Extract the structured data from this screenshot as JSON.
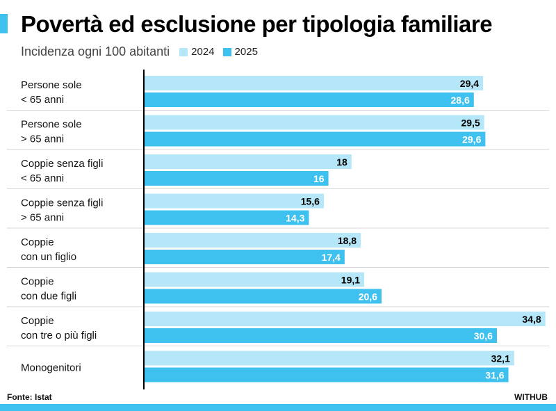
{
  "colors": {
    "series_2024": "#b5e7f9",
    "series_2025": "#3ec1ef",
    "accent": "#3ec1ef"
  },
  "header": {
    "title": "Povertà ed esclusione per tipologia familiare",
    "subtitle": "Incidenza ogni 100 abitanti"
  },
  "footer": {
    "source": "Fonte: Istat",
    "brand": "WITHUB"
  },
  "chart_data": {
    "type": "bar",
    "orientation": "horizontal",
    "title": "Povertà ed esclusione per tipologia familiare",
    "subtitle": "Incidenza ogni 100 abitanti",
    "xlim": [
      0,
      35
    ],
    "categories": [
      [
        "Persone sole",
        "< 65 anni"
      ],
      [
        "Persone sole",
        "> 65 anni"
      ],
      [
        "Coppie senza figli",
        "< 65 anni"
      ],
      [
        "Coppie senza figli",
        "> 65 anni"
      ],
      [
        "Coppie",
        "con un figlio"
      ],
      [
        "Coppie",
        "con due figli"
      ],
      [
        "Coppie",
        "con tre o più figli"
      ],
      [
        "Monogenitori"
      ]
    ],
    "series": [
      {
        "name": "2024",
        "values": [
          29.4,
          29.5,
          18,
          15.6,
          18.8,
          19.1,
          34.8,
          32.1
        ],
        "labels": [
          "29,4",
          "29,5",
          "18",
          "15,6",
          "18,8",
          "19,1",
          "34,8",
          "32,1"
        ]
      },
      {
        "name": "2025",
        "values": [
          28.6,
          29.6,
          16,
          14.3,
          17.4,
          20.6,
          30.6,
          31.6
        ],
        "labels": [
          "28,6",
          "29,6",
          "16",
          "14,3",
          "17,4",
          "20,6",
          "30,6",
          "31,6"
        ]
      }
    ],
    "legend_position": "top-left",
    "grid": false
  }
}
